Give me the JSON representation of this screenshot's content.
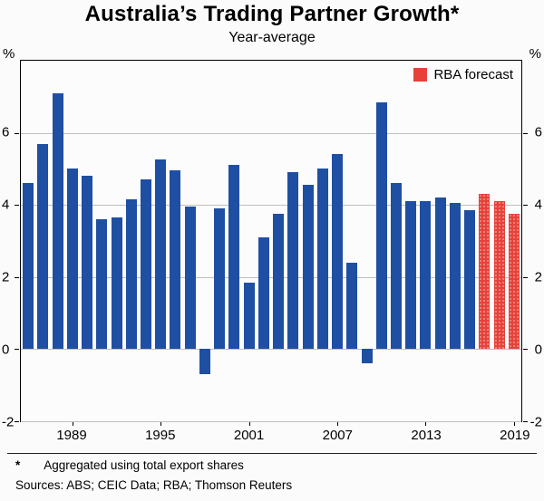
{
  "header": {
    "title": "Australia’s Trading Partner Growth*",
    "subtitle": "Year-average"
  },
  "axes": {
    "unit_left": "%",
    "unit_right": "%"
  },
  "legend": {
    "label": "RBA forecast"
  },
  "footnote": {
    "marker": "*",
    "text": "Aggregated using total export shares"
  },
  "sources": "Sources: ABS; CEIC Data; RBA; Thomson Reuters",
  "chart_data": {
    "type": "bar",
    "title": "Australia’s Trading Partner Growth*",
    "subtitle": "Year-average",
    "ylabel": "%",
    "ylim": [
      -2,
      8
    ],
    "yticks": [
      -2,
      0,
      2,
      4,
      6
    ],
    "xticks": [
      1989,
      1995,
      2001,
      2007,
      2013,
      2019
    ],
    "grid": true,
    "legend_position": "top-right",
    "series_colors": {
      "historical": "#1f4fa2",
      "forecast": "#e6423a"
    },
    "bars": [
      {
        "year": 1986,
        "value": 4.6,
        "series": "historical"
      },
      {
        "year": 1987,
        "value": 5.7,
        "series": "historical"
      },
      {
        "year": 1988,
        "value": 7.1,
        "series": "historical"
      },
      {
        "year": 1989,
        "value": 5.0,
        "series": "historical"
      },
      {
        "year": 1990,
        "value": 4.8,
        "series": "historical"
      },
      {
        "year": 1991,
        "value": 3.6,
        "series": "historical"
      },
      {
        "year": 1992,
        "value": 3.65,
        "series": "historical"
      },
      {
        "year": 1993,
        "value": 4.15,
        "series": "historical"
      },
      {
        "year": 1994,
        "value": 4.7,
        "series": "historical"
      },
      {
        "year": 1995,
        "value": 5.25,
        "series": "historical"
      },
      {
        "year": 1996,
        "value": 4.95,
        "series": "historical"
      },
      {
        "year": 1997,
        "value": 3.95,
        "series": "historical"
      },
      {
        "year": 1998,
        "value": -0.7,
        "series": "historical"
      },
      {
        "year": 1999,
        "value": 3.9,
        "series": "historical"
      },
      {
        "year": 2000,
        "value": 5.1,
        "series": "historical"
      },
      {
        "year": 2001,
        "value": 1.85,
        "series": "historical"
      },
      {
        "year": 2002,
        "value": 3.1,
        "series": "historical"
      },
      {
        "year": 2003,
        "value": 3.75,
        "series": "historical"
      },
      {
        "year": 2004,
        "value": 4.9,
        "series": "historical"
      },
      {
        "year": 2005,
        "value": 4.55,
        "series": "historical"
      },
      {
        "year": 2006,
        "value": 5.0,
        "series": "historical"
      },
      {
        "year": 2007,
        "value": 5.4,
        "series": "historical"
      },
      {
        "year": 2008,
        "value": 2.4,
        "series": "historical"
      },
      {
        "year": 2009,
        "value": -0.4,
        "series": "historical"
      },
      {
        "year": 2010,
        "value": 6.85,
        "series": "historical"
      },
      {
        "year": 2011,
        "value": 4.6,
        "series": "historical"
      },
      {
        "year": 2012,
        "value": 4.1,
        "series": "historical"
      },
      {
        "year": 2013,
        "value": 4.1,
        "series": "historical"
      },
      {
        "year": 2014,
        "value": 4.2,
        "series": "historical"
      },
      {
        "year": 2015,
        "value": 4.05,
        "series": "historical"
      },
      {
        "year": 2016,
        "value": 3.85,
        "series": "historical"
      },
      {
        "year": 2017,
        "value": 4.3,
        "series": "forecast"
      },
      {
        "year": 2018,
        "value": 4.1,
        "series": "forecast"
      },
      {
        "year": 2019,
        "value": 3.75,
        "series": "forecast"
      }
    ]
  }
}
